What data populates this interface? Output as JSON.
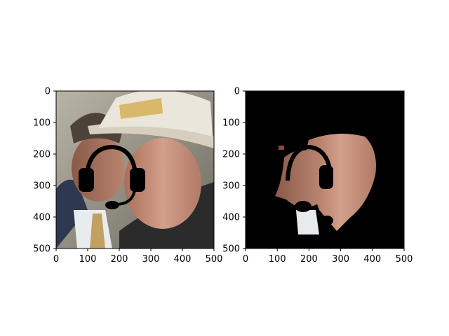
{
  "chart_data": [
    {
      "type": "image",
      "panel": "left",
      "content": "photo of two men, one in a white hard hat, with a black headset drawn over the face",
      "xlim": [
        0,
        500
      ],
      "ylim": [
        500,
        0
      ],
      "xticks": [
        0,
        100,
        200,
        300,
        400,
        500
      ],
      "yticks": [
        0,
        100,
        200,
        300,
        400,
        500
      ],
      "xtick_labels": [
        "0",
        "100",
        "200",
        "300",
        "400",
        "500"
      ],
      "ytick_labels": [
        "0",
        "100",
        "200",
        "300",
        "400",
        "500"
      ],
      "title": "",
      "xlabel": "",
      "ylabel": ""
    },
    {
      "type": "image",
      "panel": "right",
      "content": "segmentation mask: only face regions visible on black background, headset drawn over",
      "xlim": [
        0,
        500
      ],
      "ylim": [
        500,
        0
      ],
      "xticks": [
        0,
        100,
        200,
        300,
        400,
        500
      ],
      "yticks": [
        0,
        100,
        200,
        300,
        400,
        500
      ],
      "xtick_labels": [
        "0",
        "100",
        "200",
        "300",
        "400",
        "500"
      ],
      "ytick_labels": [
        "0",
        "100",
        "200",
        "300",
        "400",
        "500"
      ],
      "title": "",
      "xlabel": "",
      "ylabel": ""
    }
  ],
  "colors": {
    "background": "#ffffff",
    "mask": "#000000",
    "skin": "#c48e78",
    "helmet": "#e8e2d6",
    "headset": "#000000"
  }
}
